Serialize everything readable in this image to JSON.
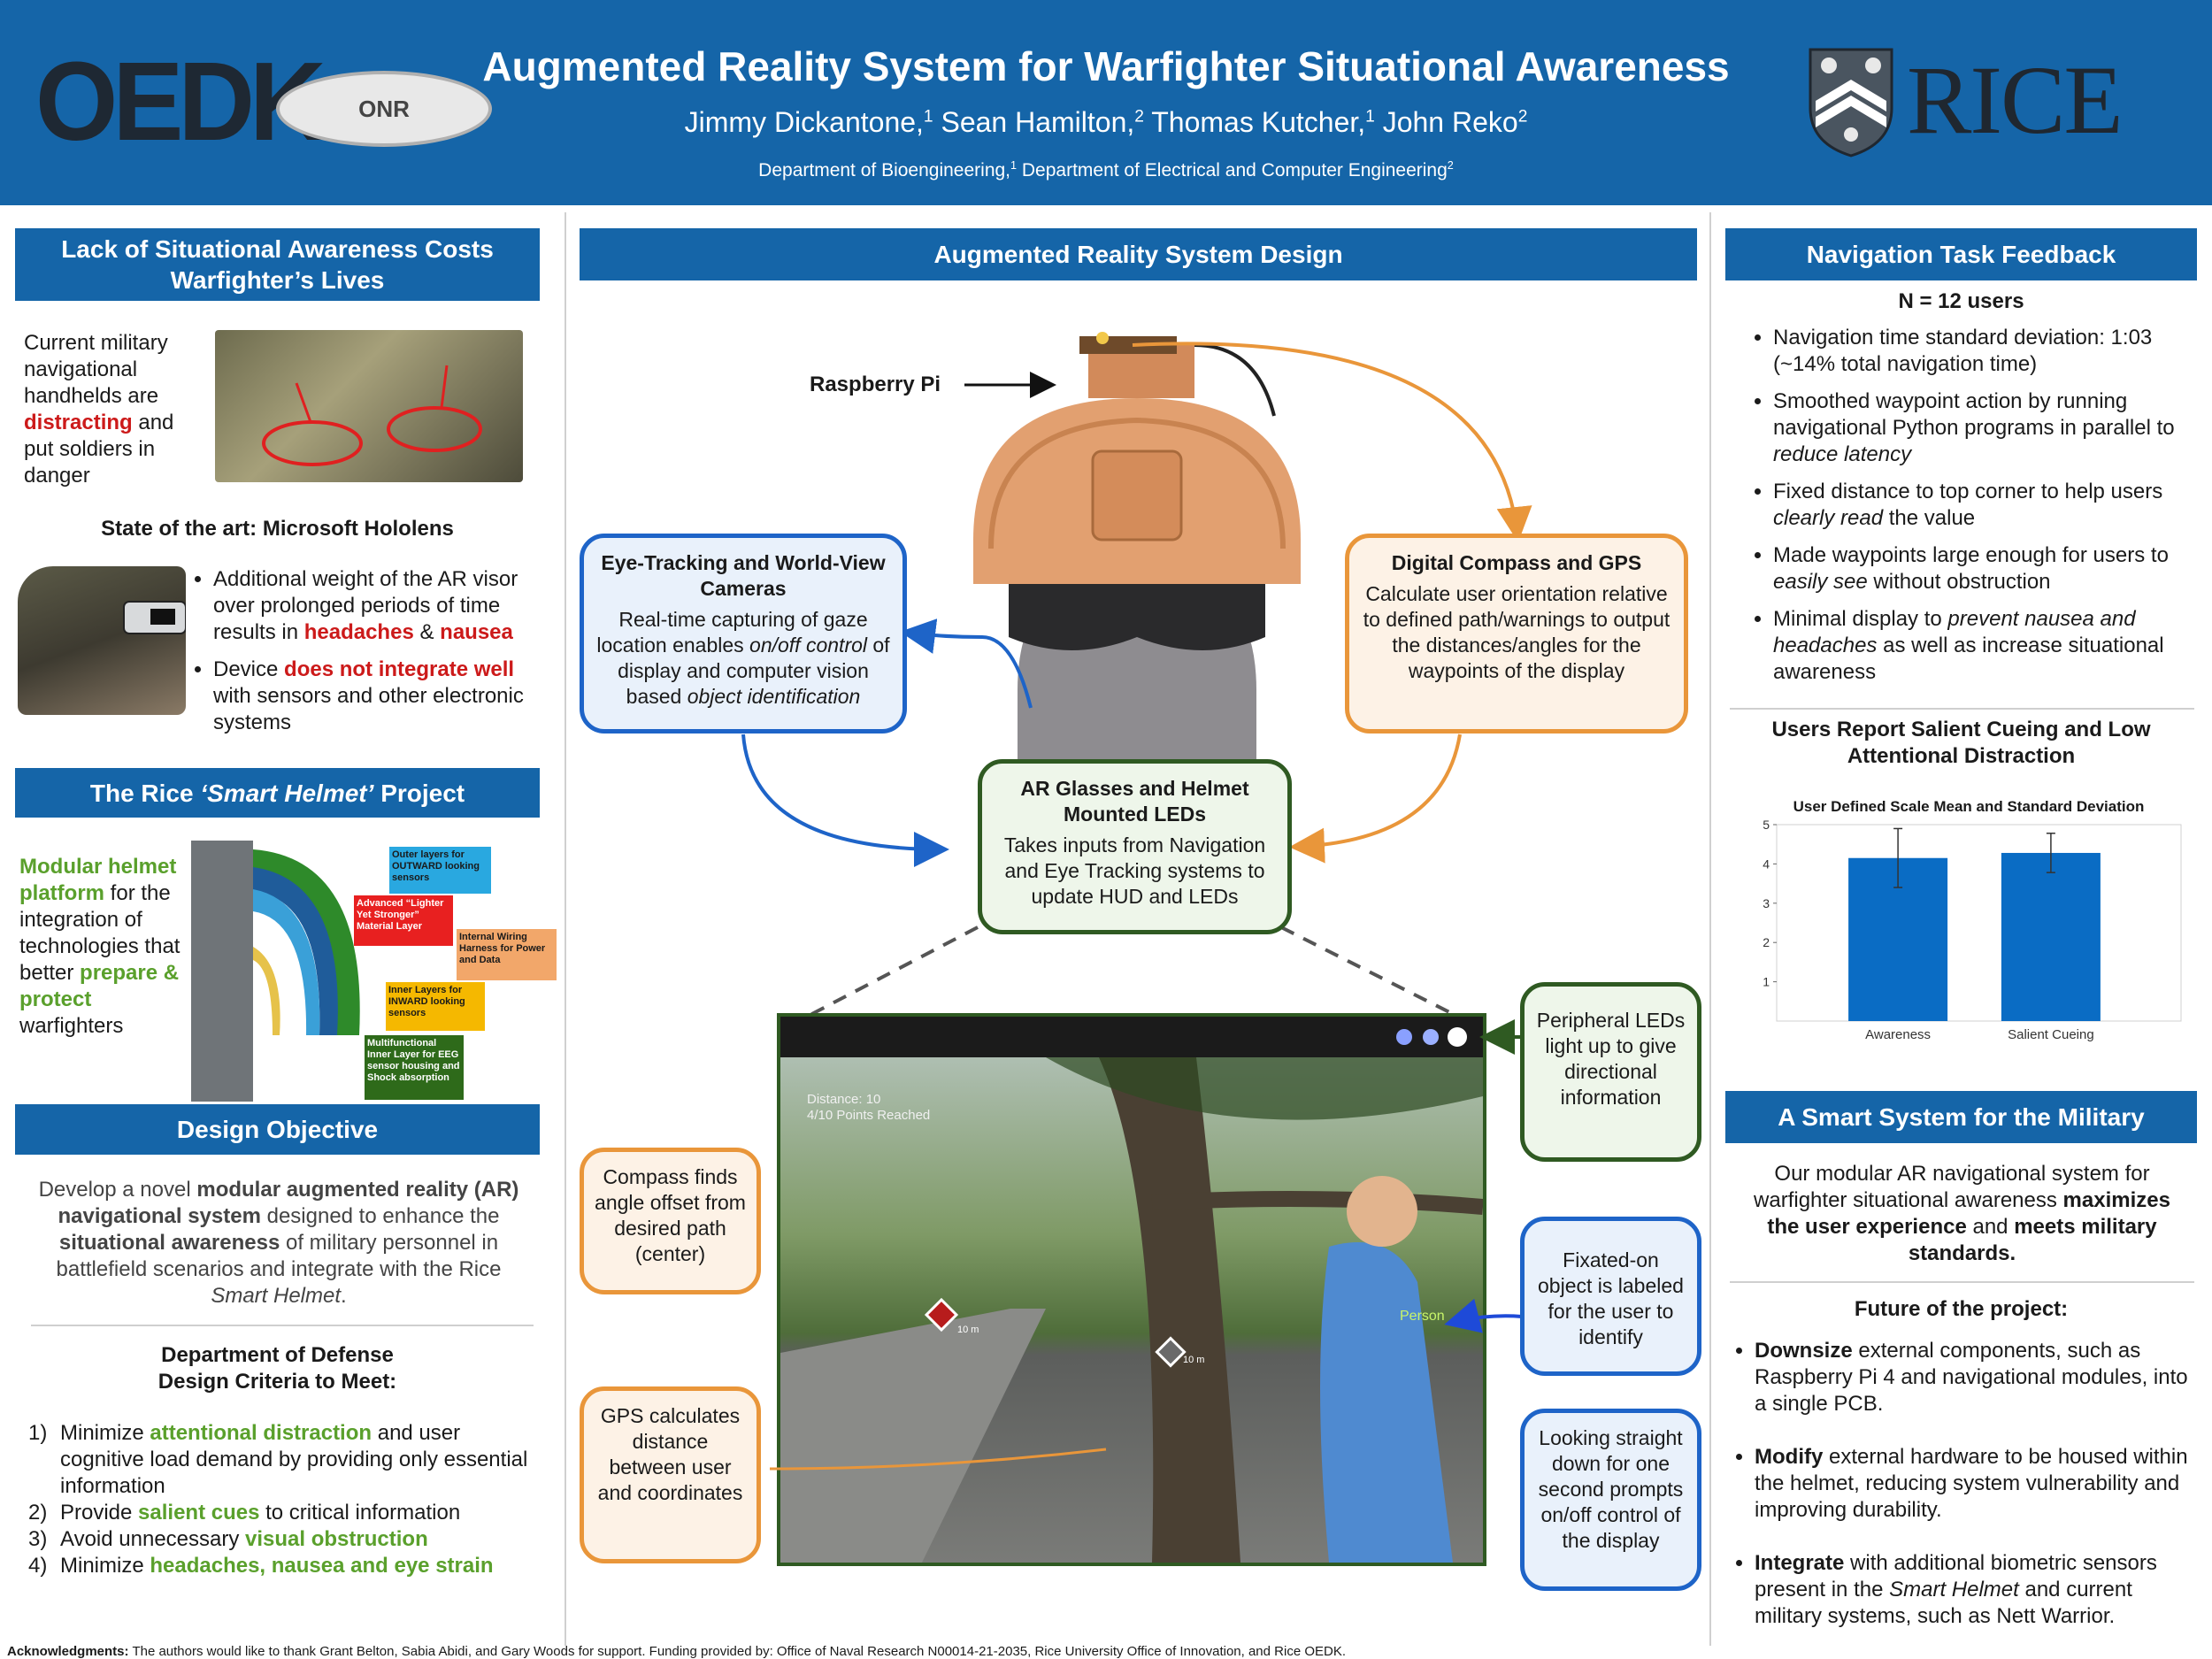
{
  "header": {
    "title": "Augmented Reality System for Warfighter Situational Awareness",
    "authors": [
      {
        "name": "Jimmy Dickantone,",
        "aff": "1"
      },
      {
        "name": "Sean Hamilton,",
        "aff": "2"
      },
      {
        "name": "Thomas Kutcher,",
        "aff": "1"
      },
      {
        "name": "John Reko",
        "aff": "2"
      }
    ],
    "dept1": "Department of Bioengineering,",
    "dept1_aff": "1",
    "dept2": "Department of Electrical and Computer Engineering",
    "dept2_aff": "2",
    "logo_oedk": "OEDK",
    "logo_onr": "ONR",
    "logo_rice": "RICE"
  },
  "left": {
    "banner1": "Lack of Situational Awareness Costs Warfighter’s Lives",
    "handheld_text_1": "Current military navigational handhelds are",
    "handheld_red": "distracting",
    "handheld_text_2": "and put soldiers in danger",
    "hololens_heading": "State of the art: Microsoft Hololens",
    "hololens_b1_a": "Additional weight of the AR visor over prolonged periods of time results in",
    "hololens_b1_red1": "headaches",
    "hololens_b1_amp": "&",
    "hololens_b1_red2": "nausea",
    "hololens_b2_a": "Device",
    "hololens_b2_red": "does not integrate well",
    "hololens_b2_b": "with sensors and other electronic systems",
    "banner2_a": "The Rice",
    "banner2_italic": "‘Smart Helmet’",
    "banner2_b": "Project",
    "modular_green": "Modular helmet platform",
    "modular_text": "for the integration of technologies that better",
    "modular_green2": "prepare & protect",
    "modular_text2": "warfighters",
    "layers": [
      {
        "label": "Outer layers for OUTWARD looking sensors",
        "color": "#29a8e0"
      },
      {
        "label": "Advanced “Lighter Yet Stronger” Material Layer",
        "color": "#e82020"
      },
      {
        "label": "Internal Wiring Harness for Power and Data",
        "color": "#f2a76a"
      },
      {
        "label": "Inner Layers for INWARD looking sensors",
        "color": "#f5b800"
      },
      {
        "label": "Multifunctional Inner Layer for EEG sensor housing and Shock absorption",
        "color": "#2e6a1a"
      }
    ],
    "banner3": "Design Objective",
    "objective_a": "Develop a novel",
    "objective_b1": "modular augmented reality (AR) navigational system",
    "objective_c": "designed to enhance the",
    "objective_b2": "situational awareness",
    "objective_d": "of military personnel in battlefield scenarios and integrate with the Rice",
    "objective_i": "Smart Helmet",
    "objective_e": ".",
    "dod_heading_1": "Department of Defense",
    "dod_heading_2": "Design Criteria to Meet:",
    "criteria": [
      {
        "num": "1)",
        "a": "Minimize",
        "g": "attentional distraction",
        "b": "and user cognitive load demand by providing only essential information"
      },
      {
        "num": "2)",
        "a": "Provide",
        "g": "salient cues",
        "b": "to critical information"
      },
      {
        "num": "3)",
        "a": "Avoid unnecessary",
        "g": "visual obstruction",
        "b": ""
      },
      {
        "num": "4)",
        "a": "Minimize",
        "g": "headaches, nausea and eye strain",
        "b": ""
      }
    ]
  },
  "center": {
    "banner": "Augmented Reality System Design",
    "raspberry_label": "Raspberry Pi",
    "eye_title": "Eye-Tracking and World-View Cameras",
    "eye_text_a": "Real-time capturing of gaze location enables",
    "eye_text_i1": "on/off control",
    "eye_text_b": "of display and computer vision based",
    "eye_text_i2": "object identification",
    "compass_title": "Digital Compass and GPS",
    "compass_text": "Calculate user orientation relative to defined path/warnings to output the distances/angles for the waypoints of the display",
    "ar_title": "AR Glasses and Helmet Mounted LEDs",
    "ar_text": "Takes inputs from Navigation and Eye Tracking systems to update HUD and LEDs",
    "hud_distance": "Distance: 10",
    "hud_points": "4/10 Points Reached",
    "hud_person": "Person",
    "waypoint_1": "10 m",
    "waypoint_2": "10 m",
    "callout_compass": "Compass finds angle offset from desired path (center)",
    "callout_gps": "GPS calculates distance between user and coordinates",
    "callout_leds": "Peripheral LEDs light up to give directional information",
    "callout_fixated": "Fixated-on object is labeled for the user to identify",
    "callout_looking": "Looking straight down for one second prompts on/off control of the display"
  },
  "right": {
    "banner1": "Navigation Task Feedback",
    "n_users": "N = 12 users",
    "bullets": [
      {
        "a": "Navigation time standard deviation: 1:03 (~14% total navigation time)",
        "i": "",
        "b": ""
      },
      {
        "a": "Smoothed waypoint action by running navigational Python programs in parallel to",
        "i": "reduce latency",
        "b": ""
      },
      {
        "a": "Fixed distance to top corner to help users",
        "i": "clearly read",
        "b": "the value"
      },
      {
        "a": "Made waypoints large enough for users to",
        "i": "easily see",
        "b": "without obstruction"
      },
      {
        "a": "Minimal display to",
        "i": "prevent nausea and headaches",
        "b": "as well as increase situational awareness"
      }
    ],
    "chart_heading": "Users Report Salient Cueing and Low Attentional Distraction",
    "banner2": "A Smart System for the Military",
    "military_a": "Our modular AR navigational system for warfighter situational awareness",
    "military_b": "maximizes the user experience",
    "military_c": "and",
    "military_d": "meets military standards.",
    "future_heading": "Future of the project:",
    "future": [
      {
        "b": "Downsize",
        "t": "external components, such as Raspberry Pi 4 and navigational modules, into a single PCB.",
        "i": "",
        "t2": ""
      },
      {
        "b": "Modify",
        "t": "external hardware to be housed within the helmet, reducing system vulnerability and improving durability.",
        "i": "",
        "t2": ""
      },
      {
        "b": "Integrate",
        "t": "with additional biometric sensors present in the",
        "i": "Smart Helmet",
        "t2": "and current military systems, such as Nett Warrior."
      }
    ]
  },
  "footer": {
    "ack_label": "Acknowledgments:",
    "ack_text": "The authors would like to thank Grant Belton, Sabia Abidi, and Gary Woods for support. Funding provided by: Office of Naval Research N00014-21-2035, Rice University Office of Innovation, and Rice OEDK."
  },
  "chart_data": {
    "type": "bar",
    "title": "User Defined Scale Mean and Standard Deviation",
    "categories": [
      "Awareness",
      "Salient Cueing"
    ],
    "values": [
      4.15,
      4.28
    ],
    "errors": [
      0.75,
      0.5
    ],
    "ylim": [
      0,
      5
    ],
    "yticks": [
      "1",
      "2",
      "3",
      "4",
      "5"
    ],
    "xlabel": "",
    "ylabel": "",
    "bar_color": "#0a6cc4"
  }
}
